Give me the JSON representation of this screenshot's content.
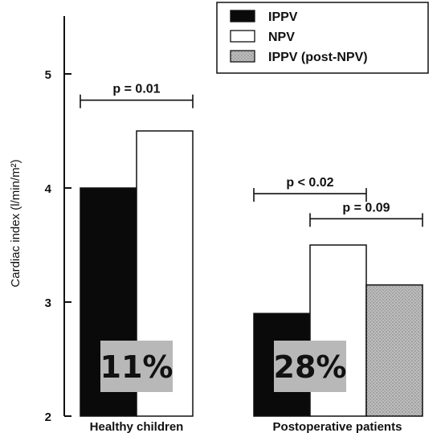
{
  "chart_data": {
    "type": "bar",
    "ylabel": "Cardiac index (l/min/m²)",
    "ylim": [
      2,
      5.5
    ],
    "yticks": [
      2,
      3,
      4,
      5
    ],
    "categories": [
      "Healthy children",
      "Postoperative patients"
    ],
    "series": [
      {
        "name": "IPPV",
        "values": [
          4.0,
          2.9
        ],
        "color": "#0a0a0a"
      },
      {
        "name": "NPV",
        "values": [
          4.5,
          3.5
        ],
        "color": "#ffffff"
      },
      {
        "name": "IPPV (post-NPV)",
        "values": [
          null,
          3.15
        ],
        "color": "#b0b0b0"
      }
    ],
    "annotations": [
      {
        "text": "p = 0.01",
        "category": 0,
        "from_series": 0,
        "to_series": 1,
        "level": 4.77
      },
      {
        "text": "p < 0.02",
        "category": 1,
        "from_series": 0,
        "to_series": 1,
        "level": 3.95
      },
      {
        "text": "p = 0.09",
        "category": 1,
        "from_series": 1,
        "to_series": 2,
        "level": 3.73
      }
    ],
    "percent_labels": [
      {
        "text": "11%",
        "category": 0
      },
      {
        "text": "28%",
        "category": 1
      }
    ],
    "legend_position": "top-right",
    "grid": false
  }
}
